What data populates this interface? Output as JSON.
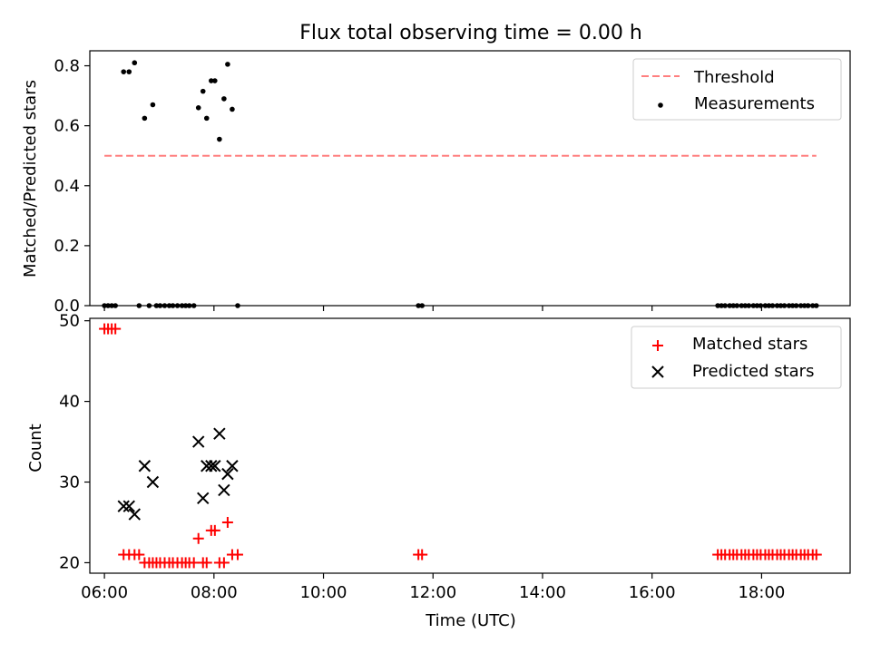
{
  "chart_data": [
    {
      "type": "scatter",
      "title": "Flux total observing time = 0.00 h",
      "xlabel": "",
      "ylabel": "Matched/Predicted stars",
      "xlim": [
        "05:44",
        "19:37"
      ],
      "ylim": [
        0,
        0.85
      ],
      "xticks": [
        "06:00",
        "08:00",
        "10:00",
        "12:00",
        "14:00",
        "16:00",
        "18:00"
      ],
      "yticks": [
        "0.0",
        "0.2",
        "0.4",
        "0.6",
        "0.8"
      ],
      "ytick_values": [
        0,
        0.2,
        0.4,
        0.6,
        0.8
      ],
      "legend_position": "upper right",
      "threshold": {
        "name": "Threshold",
        "value": 0.5,
        "x": [
          "06:00",
          "19:00"
        ],
        "color": "#ff7f7f",
        "style": "dashed"
      },
      "series": [
        {
          "name": "Measurements",
          "marker": "dot",
          "color": "#000000",
          "points": [
            [
              "06:00",
              0
            ],
            [
              "06:04",
              0
            ],
            [
              "06:08",
              0
            ],
            [
              "06:12",
              0
            ],
            [
              "06:21",
              0.78
            ],
            [
              "06:27",
              0.78
            ],
            [
              "06:33",
              0.81
            ],
            [
              "06:38",
              0
            ],
            [
              "06:44",
              0.625
            ],
            [
              "06:49",
              0
            ],
            [
              "06:53",
              0.67
            ],
            [
              "06:57",
              0
            ],
            [
              "07:01",
              0
            ],
            [
              "07:06",
              0
            ],
            [
              "07:11",
              0
            ],
            [
              "07:15",
              0
            ],
            [
              "07:20",
              0
            ],
            [
              "07:25",
              0
            ],
            [
              "07:29",
              0
            ],
            [
              "07:33",
              0
            ],
            [
              "07:38",
              0
            ],
            [
              "07:43",
              0.66
            ],
            [
              "07:48",
              0.715
            ],
            [
              "07:52",
              0.625
            ],
            [
              "07:57",
              0.75
            ],
            [
              "08:01",
              0.75
            ],
            [
              "08:06",
              0.555
            ],
            [
              "08:11",
              0.69
            ],
            [
              "08:15",
              0.805
            ],
            [
              "08:20",
              0.655
            ],
            [
              "08:26",
              0
            ],
            [
              "11:44",
              0
            ],
            [
              "11:48",
              0
            ],
            [
              "17:12",
              0
            ],
            [
              "17:16",
              0
            ],
            [
              "17:20",
              0
            ],
            [
              "17:25",
              0
            ],
            [
              "17:29",
              0
            ],
            [
              "17:33",
              0
            ],
            [
              "17:38",
              0
            ],
            [
              "17:42",
              0
            ],
            [
              "17:46",
              0
            ],
            [
              "17:51",
              0
            ],
            [
              "17:55",
              0
            ],
            [
              "17:59",
              0
            ],
            [
              "18:04",
              0
            ],
            [
              "18:08",
              0
            ],
            [
              "18:12",
              0
            ],
            [
              "18:17",
              0
            ],
            [
              "18:21",
              0
            ],
            [
              "18:25",
              0
            ],
            [
              "18:30",
              0
            ],
            [
              "18:34",
              0
            ],
            [
              "18:38",
              0
            ],
            [
              "18:43",
              0
            ],
            [
              "18:47",
              0
            ],
            [
              "18:51",
              0
            ],
            [
              "18:56",
              0
            ],
            [
              "19:00",
              0
            ]
          ]
        }
      ]
    },
    {
      "type": "scatter",
      "title": "",
      "xlabel": "Time (UTC)",
      "ylabel": "Count",
      "xlim": [
        "05:44",
        "19:37"
      ],
      "ylim": [
        18.7,
        50.3
      ],
      "xticks": [
        "06:00",
        "08:00",
        "10:00",
        "12:00",
        "14:00",
        "16:00",
        "18:00"
      ],
      "yticks": [
        "20",
        "30",
        "40",
        "50"
      ],
      "ytick_values": [
        20,
        30,
        40,
        50
      ],
      "legend_position": "upper right",
      "series": [
        {
          "name": "Matched stars",
          "marker": "plus",
          "color": "#ff0000",
          "points": [
            [
              "06:00",
              49
            ],
            [
              "06:04",
              49
            ],
            [
              "06:08",
              49
            ],
            [
              "06:12",
              49
            ],
            [
              "06:21",
              21
            ],
            [
              "06:27",
              21
            ],
            [
              "06:33",
              21
            ],
            [
              "06:38",
              21
            ],
            [
              "06:44",
              20
            ],
            [
              "06:49",
              20
            ],
            [
              "06:53",
              20
            ],
            [
              "06:57",
              20
            ],
            [
              "07:01",
              20
            ],
            [
              "07:06",
              20
            ],
            [
              "07:11",
              20
            ],
            [
              "07:15",
              20
            ],
            [
              "07:20",
              20
            ],
            [
              "07:25",
              20
            ],
            [
              "07:29",
              20
            ],
            [
              "07:33",
              20
            ],
            [
              "07:38",
              20
            ],
            [
              "07:43",
              23
            ],
            [
              "07:48",
              20
            ],
            [
              "07:52",
              20
            ],
            [
              "07:57",
              24
            ],
            [
              "08:01",
              24
            ],
            [
              "08:06",
              20
            ],
            [
              "08:11",
              20
            ],
            [
              "08:15",
              25
            ],
            [
              "08:20",
              21
            ],
            [
              "08:26",
              21
            ],
            [
              "11:44",
              21
            ],
            [
              "11:48",
              21
            ],
            [
              "17:12",
              21
            ],
            [
              "17:16",
              21
            ],
            [
              "17:20",
              21
            ],
            [
              "17:25",
              21
            ],
            [
              "17:29",
              21
            ],
            [
              "17:33",
              21
            ],
            [
              "17:38",
              21
            ],
            [
              "17:42",
              21
            ],
            [
              "17:46",
              21
            ],
            [
              "17:51",
              21
            ],
            [
              "17:55",
              21
            ],
            [
              "17:59",
              21
            ],
            [
              "18:04",
              21
            ],
            [
              "18:08",
              21
            ],
            [
              "18:12",
              21
            ],
            [
              "18:17",
              21
            ],
            [
              "18:21",
              21
            ],
            [
              "18:25",
              21
            ],
            [
              "18:30",
              21
            ],
            [
              "18:34",
              21
            ],
            [
              "18:38",
              21
            ],
            [
              "18:43",
              21
            ],
            [
              "18:47",
              21
            ],
            [
              "18:51",
              21
            ],
            [
              "18:56",
              21
            ],
            [
              "19:00",
              21
            ]
          ]
        },
        {
          "name": "Predicted stars",
          "marker": "x",
          "color": "#000000",
          "points": [
            [
              "06:21",
              27
            ],
            [
              "06:27",
              27
            ],
            [
              "06:33",
              26
            ],
            [
              "06:44",
              32
            ],
            [
              "06:53",
              30
            ],
            [
              "07:43",
              35
            ],
            [
              "07:48",
              28
            ],
            [
              "07:52",
              32
            ],
            [
              "07:57",
              32
            ],
            [
              "08:01",
              32
            ],
            [
              "08:06",
              36
            ],
            [
              "08:11",
              29
            ],
            [
              "08:15",
              31
            ],
            [
              "08:20",
              32
            ]
          ]
        }
      ]
    }
  ]
}
